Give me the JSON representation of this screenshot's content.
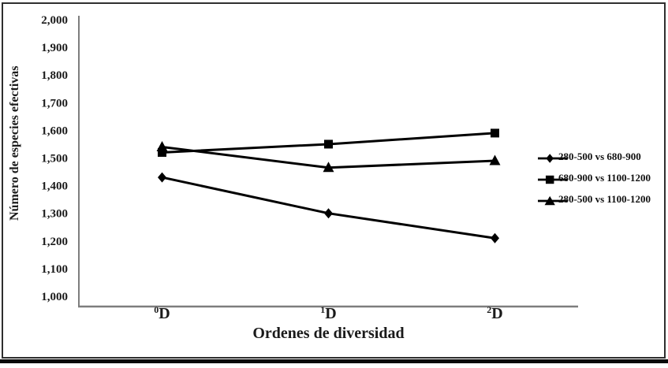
{
  "figure": {
    "frame_border_color": "#2f2f2f",
    "bottom_rule_color": "#0a0a0a",
    "background_color": "#ffffff"
  },
  "chart_data": {
    "type": "line",
    "title": "",
    "xlabel": "Ordenes de diversidad",
    "ylabel": "Número de especies efectivas",
    "categories": [
      {
        "sup": "0",
        "base": "D"
      },
      {
        "sup": "1",
        "base": "D"
      },
      {
        "sup": "2",
        "base": "D"
      }
    ],
    "ylim": [
      1000,
      2000
    ],
    "ytick_step": 100,
    "ytick_labels": [
      "2,000",
      "1,900",
      "1,800",
      "1,700",
      "1,600",
      "1,500",
      "1,400",
      "1,300",
      "1,200",
      "1,100",
      "1,000"
    ],
    "grid": false,
    "legend_position": "right-middle",
    "axis_color": "#7d7d7d",
    "text_color": "#1a1a1a",
    "series": [
      {
        "name": "280-500 vs 680-900",
        "marker": "diamond",
        "color": "#000000",
        "values": [
          1430,
          1300,
          1210
        ]
      },
      {
        "name": "680-900 vs 1100-1200",
        "marker": "square",
        "color": "#000000",
        "values": [
          1520,
          1550,
          1590
        ]
      },
      {
        "name": "280-500 vs 1100-1200",
        "marker": "triangle",
        "color": "#000000",
        "values": [
          1540,
          1465,
          1490
        ]
      }
    ]
  }
}
